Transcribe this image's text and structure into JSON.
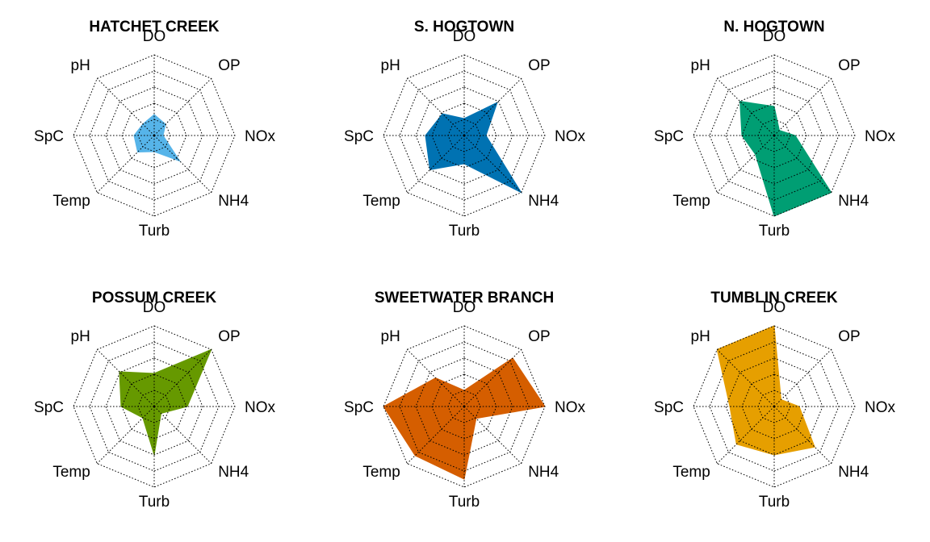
{
  "chart_data": [
    {
      "type": "radar",
      "title": "HATCHET CREEK",
      "axes": [
        "DO",
        "OP",
        "NOx",
        "NH4",
        "Turb",
        "Temp",
        "SpC",
        "pH"
      ],
      "rlim": [
        0,
        1
      ],
      "grid_levels": 5,
      "grid": true,
      "color": "#56B4E9",
      "values": [
        0.26,
        0.2,
        0.11,
        0.45,
        0.2,
        0.29,
        0.25,
        0.2
      ]
    },
    {
      "type": "radar",
      "title": "S. HOGTOWN",
      "axes": [
        "DO",
        "OP",
        "NOx",
        "NH4",
        "Turb",
        "Temp",
        "SpC",
        "pH"
      ],
      "rlim": [
        0,
        1
      ],
      "grid_levels": 5,
      "grid": true,
      "color": "#0072B2",
      "values": [
        0.21,
        0.58,
        0.27,
        1.0,
        0.35,
        0.6,
        0.48,
        0.38
      ]
    },
    {
      "type": "radar",
      "title": "N. HOGTOWN",
      "axes": [
        "DO",
        "OP",
        "NOx",
        "NH4",
        "Turb",
        "Temp",
        "SpC",
        "pH"
      ],
      "rlim": [
        0,
        1
      ],
      "grid_levels": 5,
      "grid": true,
      "color": "#009E73",
      "values": [
        0.36,
        0.09,
        0.26,
        1.0,
        1.0,
        0.33,
        0.4,
        0.6
      ]
    },
    {
      "type": "radar",
      "title": "POSSUM CREEK",
      "axes": [
        "DO",
        "OP",
        "NOx",
        "NH4",
        "Turb",
        "Temp",
        "SpC",
        "pH"
      ],
      "rlim": [
        0,
        1
      ],
      "grid_levels": 5,
      "grid": true,
      "color": "#669900",
      "values": [
        0.41,
        1.0,
        0.41,
        0.12,
        0.6,
        0.2,
        0.41,
        0.61
      ]
    },
    {
      "type": "radar",
      "title": "SWEETWATER BRANCH",
      "axes": [
        "DO",
        "OP",
        "NOx",
        "NH4",
        "Turb",
        "Temp",
        "SpC",
        "pH"
      ],
      "rlim": [
        0,
        1
      ],
      "grid_levels": 5,
      "grid": true,
      "color": "#D55E00",
      "values": [
        0.2,
        0.85,
        1.0,
        0.21,
        0.9,
        0.86,
        1.0,
        0.5
      ]
    },
    {
      "type": "radar",
      "title": "TUMBLIN CREEK",
      "axes": [
        "DO",
        "OP",
        "NOx",
        "NH4",
        "Turb",
        "Temp",
        "SpC",
        "pH"
      ],
      "rlim": [
        0,
        1
      ],
      "grid_levels": 5,
      "grid": true,
      "color": "#E69F00",
      "values": [
        1.0,
        0.12,
        0.31,
        0.71,
        0.6,
        0.66,
        0.55,
        1.0
      ]
    }
  ]
}
